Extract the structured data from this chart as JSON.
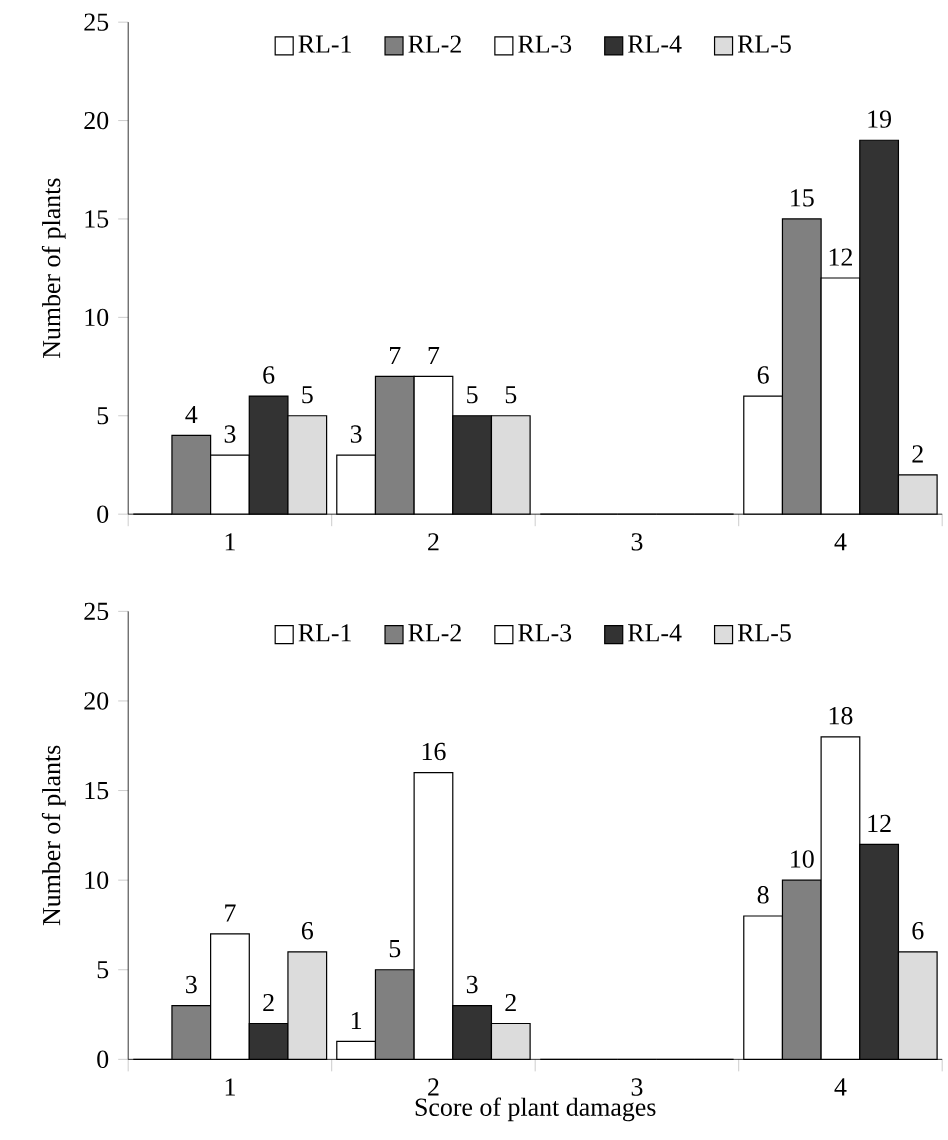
{
  "chart_data": [
    {
      "type": "bar",
      "categories": [
        "1",
        "2",
        "3",
        "4"
      ],
      "ylabel": "Number of plants",
      "ylim": [
        0,
        25
      ],
      "yticks": [
        0,
        5,
        10,
        15,
        20,
        25
      ],
      "legend": "top",
      "series": [
        {
          "name": "RL-1",
          "color": "#ffffff",
          "values": [
            0,
            3,
            0,
            6
          ],
          "value_labels": [
            null,
            "3",
            null,
            "6"
          ]
        },
        {
          "name": "RL-2",
          "color": "#808080",
          "values": [
            4,
            7,
            0,
            15
          ],
          "value_labels": [
            "4",
            "7",
            null,
            "15"
          ]
        },
        {
          "name": "RL-3",
          "color": "#ffffff",
          "values": [
            3,
            7,
            0,
            12
          ],
          "value_labels": [
            "3",
            "7",
            null,
            "12"
          ]
        },
        {
          "name": "RL-4",
          "color": "#333333",
          "values": [
            6,
            5,
            0,
            19
          ],
          "value_labels": [
            "6",
            "5",
            null,
            "19"
          ]
        },
        {
          "name": "RL-5",
          "color": "#dcdcdc",
          "values": [
            5,
            5,
            0,
            2
          ],
          "value_labels": [
            "5",
            "5",
            null,
            "2"
          ]
        }
      ]
    },
    {
      "type": "bar",
      "categories": [
        "1",
        "2",
        "3",
        "4"
      ],
      "ylabel": "Number of plants",
      "xlabel": "Score of plant damages",
      "ylim": [
        0,
        25
      ],
      "yticks": [
        0,
        5,
        10,
        15,
        20,
        25
      ],
      "legend": "top",
      "series": [
        {
          "name": "RL-1",
          "color": "#ffffff",
          "values": [
            0,
            1,
            0,
            8
          ],
          "value_labels": [
            null,
            "1",
            null,
            "8"
          ]
        },
        {
          "name": "RL-2",
          "color": "#808080",
          "values": [
            3,
            5,
            0,
            10
          ],
          "value_labels": [
            "3",
            "5",
            null,
            "10"
          ]
        },
        {
          "name": "RL-3",
          "color": "#ffffff",
          "values": [
            7,
            16,
            0,
            18
          ],
          "value_labels": [
            "7",
            "16",
            null,
            "18"
          ]
        },
        {
          "name": "RL-4",
          "color": "#333333",
          "values": [
            2,
            3,
            0,
            12
          ],
          "value_labels": [
            "2",
            "3",
            null,
            "12"
          ]
        },
        {
          "name": "RL-5",
          "color": "#dcdcdc",
          "values": [
            6,
            2,
            0,
            6
          ],
          "value_labels": [
            "6",
            "2",
            null,
            "6"
          ]
        }
      ]
    }
  ]
}
